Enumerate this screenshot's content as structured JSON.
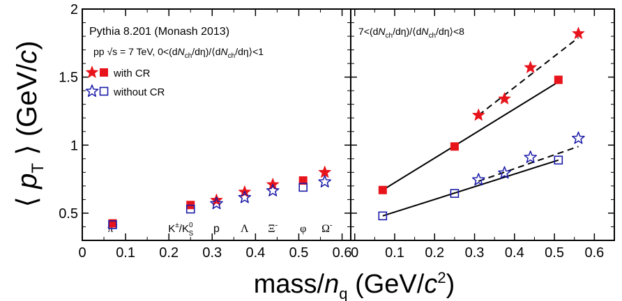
{
  "chart_data": [
    {
      "type": "scatter",
      "panel": "left",
      "annotation_lines": [
        "Pythia 8.201 (Monash 2013)",
        "pp √s = 7 TeV, 0<(dNch/dη)/⟨dNch/dη⟩<1"
      ],
      "legend": {
        "placement": "top-left",
        "entries": [
          "with CR",
          "without CR"
        ]
      },
      "xlim": [
        0,
        0.62
      ],
      "ylim": [
        0.3,
        2.0
      ],
      "particle_labels": [
        {
          "text": "π±",
          "x": 0.07
        },
        {
          "text": "K±/K0S",
          "x": 0.25
        },
        {
          "text": "p",
          "x": 0.31
        },
        {
          "text": "Λ",
          "x": 0.375
        },
        {
          "text": "Ξ-",
          "x": 0.44
        },
        {
          "text": "φ",
          "x": 0.51
        },
        {
          "text": "Ω-",
          "x": 0.565
        }
      ],
      "series": [
        {
          "name": "with CR",
          "marker": "filled",
          "color": "#e8141c",
          "squares": [
            {
              "x": 0.07,
              "y": 0.425
            },
            {
              "x": 0.25,
              "y": 0.56
            },
            {
              "x": 0.51,
              "y": 0.74
            }
          ],
          "stars": [
            {
              "x": 0.31,
              "y": 0.595
            },
            {
              "x": 0.375,
              "y": 0.655
            },
            {
              "x": 0.44,
              "y": 0.71
            },
            {
              "x": 0.56,
              "y": 0.8
            }
          ]
        },
        {
          "name": "without CR",
          "marker": "open",
          "color": "#1a1aa8",
          "squares": [
            {
              "x": 0.07,
              "y": 0.415
            },
            {
              "x": 0.25,
              "y": 0.53
            },
            {
              "x": 0.51,
              "y": 0.69
            }
          ],
          "stars": [
            {
              "x": 0.31,
              "y": 0.57
            },
            {
              "x": 0.375,
              "y": 0.615
            },
            {
              "x": 0.44,
              "y": 0.665
            },
            {
              "x": 0.56,
              "y": 0.73
            }
          ]
        }
      ]
    },
    {
      "type": "scatter",
      "panel": "right",
      "annotation": "7<(dNch/dη)/⟨dNch/dη⟩<8",
      "xlim": [
        -0.01,
        0.65
      ],
      "ylim": [
        0.3,
        2.0
      ],
      "series": [
        {
          "name": "with CR",
          "marker": "filled",
          "color": "#e8141c",
          "squares": [
            {
              "x": 0.07,
              "y": 0.67
            },
            {
              "x": 0.25,
              "y": 0.99
            },
            {
              "x": 0.51,
              "y": 1.48
            }
          ],
          "stars": [
            {
              "x": 0.31,
              "y": 1.22
            },
            {
              "x": 0.375,
              "y": 1.34
            },
            {
              "x": 0.44,
              "y": 1.57
            },
            {
              "x": 0.56,
              "y": 1.82
            }
          ],
          "fit_solid": [
            [
              0.07,
              0.67
            ],
            [
              0.51,
              1.465
            ]
          ],
          "fit_dashed": [
            [
              0.31,
              1.22
            ],
            [
              0.56,
              1.79
            ]
          ]
        },
        {
          "name": "without CR",
          "marker": "open",
          "color": "#1a1aa8",
          "squares": [
            {
              "x": 0.07,
              "y": 0.48
            },
            {
              "x": 0.25,
              "y": 0.645
            },
            {
              "x": 0.51,
              "y": 0.89
            }
          ],
          "stars": [
            {
              "x": 0.31,
              "y": 0.745
            },
            {
              "x": 0.375,
              "y": 0.795
            },
            {
              "x": 0.44,
              "y": 0.91
            },
            {
              "x": 0.56,
              "y": 1.05
            }
          ],
          "fit_solid": [
            [
              0.07,
              0.48
            ],
            [
              0.51,
              0.89
            ]
          ],
          "fit_dashed": [
            [
              0.31,
              0.735
            ],
            [
              0.56,
              0.99
            ]
          ]
        }
      ]
    }
  ],
  "axes": {
    "ylabel": "⟨ pT ⟩ (GeV/c)",
    "xlabel": "mass/nq (GeV/c2)",
    "y_ticks": [
      "0.5",
      "1",
      "1.5",
      "2"
    ],
    "x_ticks_left": [
      "0",
      "0.1",
      "0.2",
      "0.3",
      "0.4",
      "0.5",
      "0.6"
    ],
    "x_ticks_right": [
      "0",
      "0.1",
      "0.2",
      "0.3",
      "0.4",
      "0.5",
      "0.6"
    ]
  }
}
